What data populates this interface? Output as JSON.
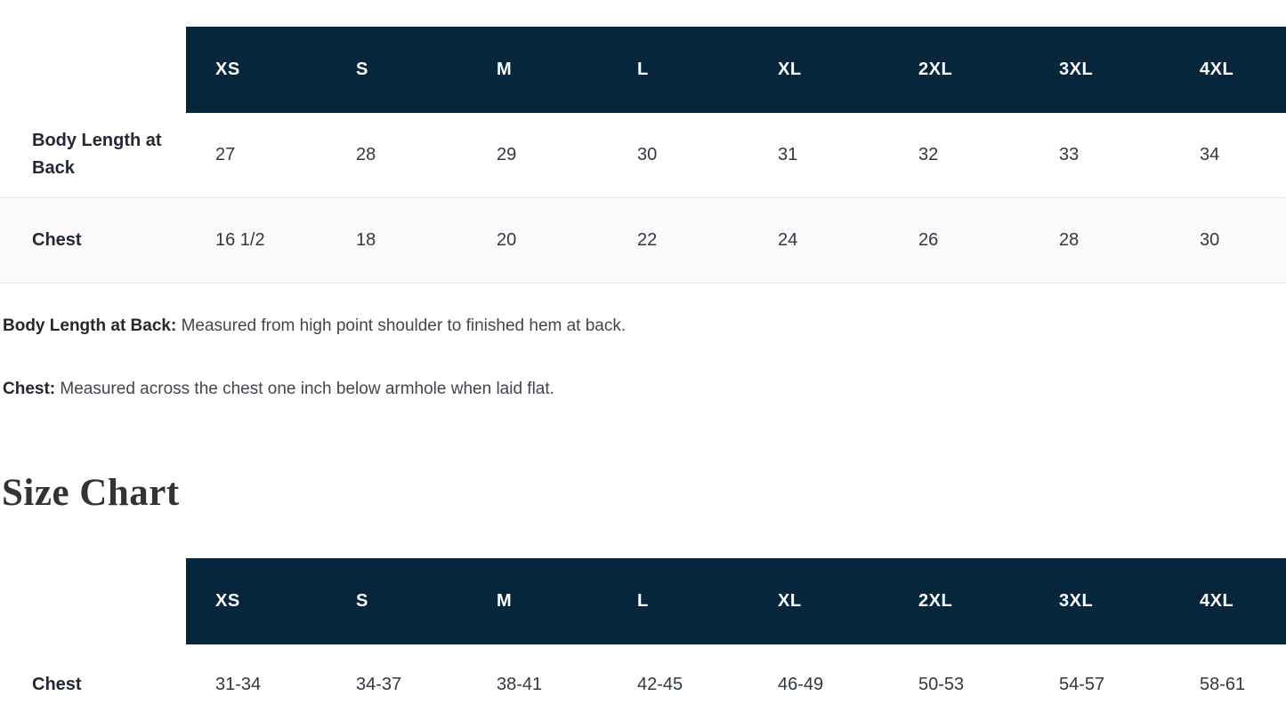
{
  "page": {
    "heading": "Size Chart"
  },
  "spec_table": {
    "sizes": [
      "XS",
      "S",
      "M",
      "L",
      "XL",
      "2XL",
      "3XL",
      "4XL"
    ],
    "rows": [
      {
        "label": "Body Length at Back",
        "values": [
          "27",
          "28",
          "29",
          "30",
          "31",
          "32",
          "33",
          "34"
        ]
      },
      {
        "label": "Chest",
        "values": [
          "16 1/2",
          "18",
          "20",
          "22",
          "24",
          "26",
          "28",
          "30"
        ]
      }
    ]
  },
  "notes": [
    {
      "term": "Body Length at Back:",
      "text": " Measured from high point shoulder to finished hem at back."
    },
    {
      "term": "Chest:",
      "text": " Measured across the chest one inch below armhole when laid flat."
    }
  ],
  "size_chart_table": {
    "sizes": [
      "XS",
      "S",
      "M",
      "L",
      "XL",
      "2XL",
      "3XL",
      "4XL"
    ],
    "rows": [
      {
        "label": "Chest",
        "values": [
          "31-34",
          "34-37",
          "38-41",
          "42-45",
          "46-49",
          "50-53",
          "54-57",
          "58-61"
        ]
      }
    ]
  },
  "colors": {
    "header_bg": "#06263c",
    "header_text": "#ffffff",
    "label_text": "#212936",
    "value_text": "#2e3944",
    "zebra_bg": "#fafafa",
    "divider": "#e7e7e7",
    "note_term_text": "#23292f",
    "note_text": "#40474f",
    "heading_text": "#333333"
  }
}
